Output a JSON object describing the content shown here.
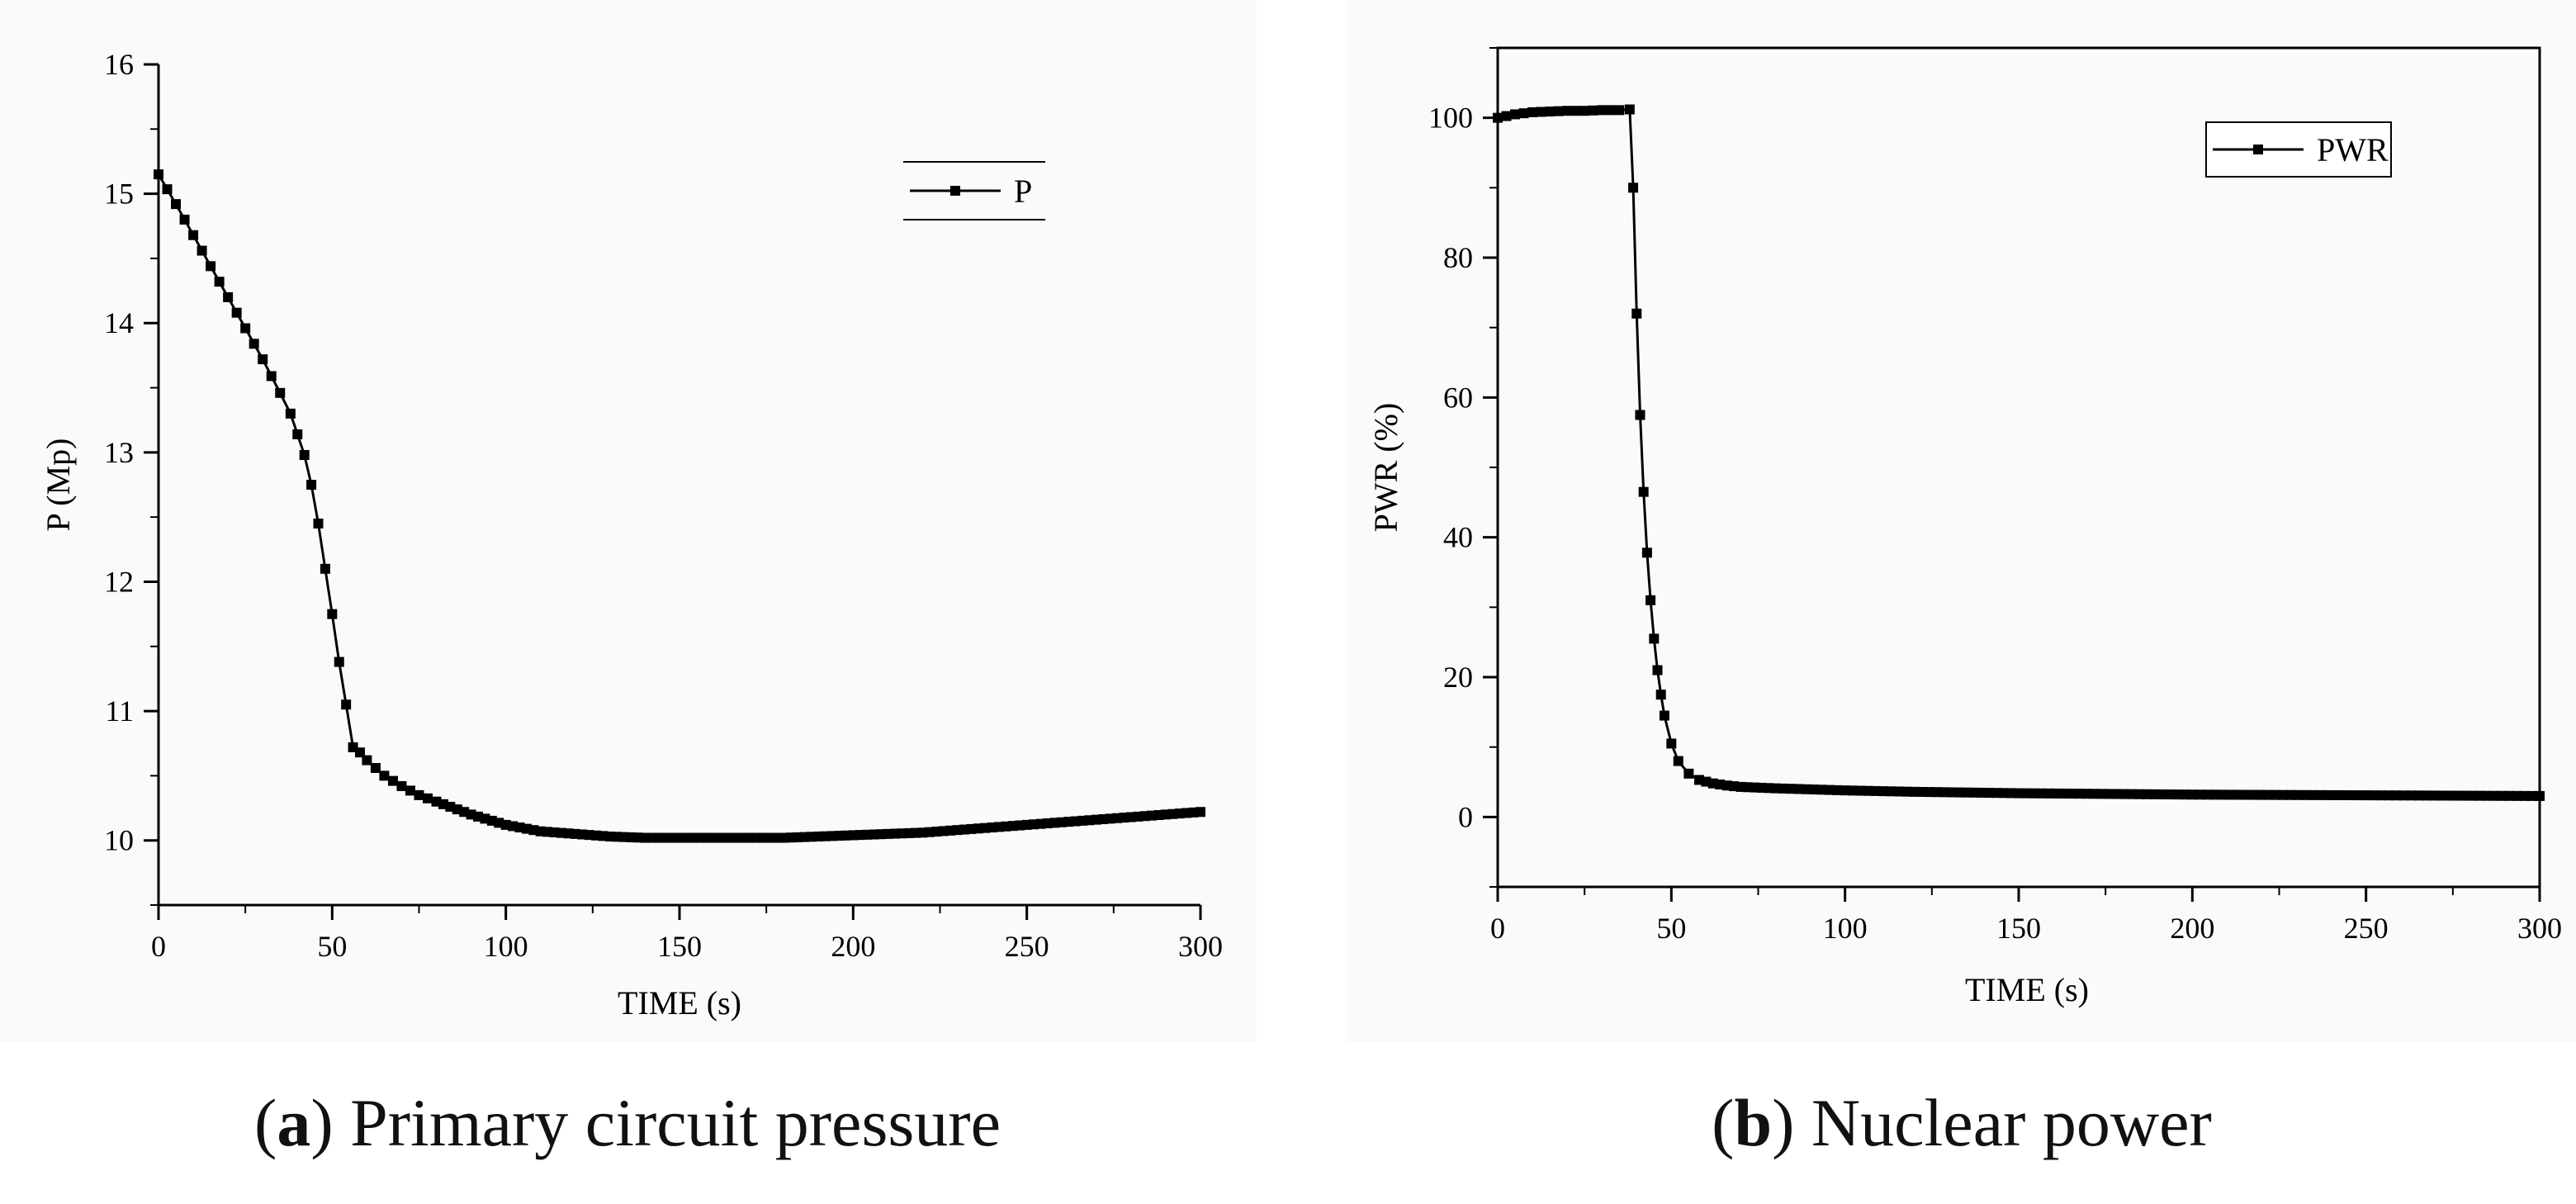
{
  "chart_data": [
    {
      "panel": "a",
      "type": "line",
      "caption_letter": "a",
      "caption_text": "Primary circuit pressure",
      "xlabel": "TIME (s)",
      "ylabel": "P (Mp)",
      "xlim": [
        0,
        300
      ],
      "ylim": [
        9.5,
        16
      ],
      "xticks": [
        0,
        50,
        100,
        150,
        200,
        250,
        300
      ],
      "yticks": [
        10,
        11,
        12,
        13,
        14,
        15,
        16
      ],
      "legend": "top-right",
      "series": [
        {
          "name": "P",
          "marker": "square",
          "x": [
            0,
            5,
            10,
            15,
            20,
            25,
            30,
            35,
            38,
            42,
            44,
            46,
            48,
            50,
            52,
            54,
            56,
            58,
            60,
            65,
            70,
            75,
            80,
            90,
            100,
            110,
            120,
            130,
            140,
            150,
            160,
            170,
            180,
            190,
            200,
            210,
            220,
            230,
            240,
            250,
            260,
            270,
            280,
            290,
            300
          ],
          "y": [
            15.15,
            14.92,
            14.68,
            14.44,
            14.2,
            13.96,
            13.72,
            13.46,
            13.3,
            12.98,
            12.75,
            12.45,
            12.1,
            11.75,
            11.38,
            11.05,
            10.72,
            10.68,
            10.62,
            10.5,
            10.42,
            10.35,
            10.3,
            10.2,
            10.12,
            10.07,
            10.05,
            10.03,
            10.02,
            10.02,
            10.02,
            10.02,
            10.02,
            10.03,
            10.04,
            10.05,
            10.06,
            10.08,
            10.1,
            10.12,
            10.14,
            10.16,
            10.18,
            10.2,
            10.22
          ]
        }
      ]
    },
    {
      "panel": "b",
      "type": "line",
      "caption_letter": "b",
      "caption_text": "Nuclear power",
      "xlabel": "TIME (s)",
      "ylabel": "PWR (%)",
      "xlim": [
        0,
        300
      ],
      "ylim": [
        -10,
        110
      ],
      "xticks": [
        0,
        50,
        100,
        150,
        200,
        250,
        300
      ],
      "yticks": [
        0,
        20,
        40,
        60,
        80,
        100
      ],
      "legend": "top-right",
      "series": [
        {
          "name": "PWR",
          "marker": "square",
          "x": [
            0,
            5,
            10,
            15,
            20,
            25,
            30,
            35,
            38,
            39,
            40,
            41,
            42,
            43,
            44,
            45,
            46,
            47,
            48,
            50,
            52,
            55,
            58,
            62,
            66,
            70,
            80,
            100,
            120,
            150,
            200,
            250,
            300
          ],
          "y": [
            100,
            100.5,
            100.8,
            100.9,
            101,
            101,
            101.1,
            101.1,
            101.2,
            90,
            72,
            57.5,
            46.5,
            37.8,
            31,
            25.5,
            21,
            17.5,
            14.5,
            10.5,
            8,
            6.2,
            5.3,
            4.8,
            4.5,
            4.3,
            4.1,
            3.8,
            3.6,
            3.4,
            3.2,
            3.1,
            3
          ]
        }
      ]
    }
  ]
}
